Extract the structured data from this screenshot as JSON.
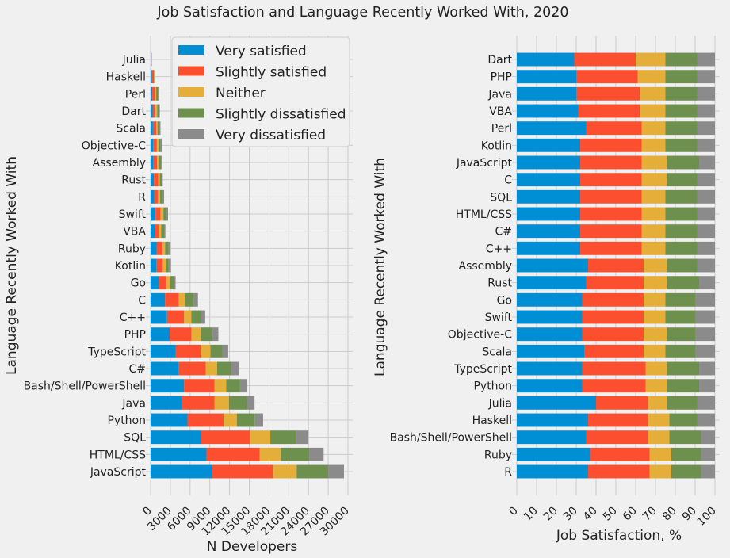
{
  "figure_title": "Job Satisfaction and Language Recently Worked With, 2020",
  "colors": [
    "#008fd5",
    "#fc4f30",
    "#e5ae38",
    "#6d904f",
    "#8b8b8b"
  ],
  "chart_data": [
    {
      "type": "bar",
      "orientation": "horizontal",
      "stacked": true,
      "title": "",
      "xlabel": "N Developers",
      "ylabel": "Language Recently Worked With",
      "xlim": [
        0,
        30000
      ],
      "xticks": [
        "0",
        "3000",
        "6000",
        "9000",
        "12000",
        "15000",
        "18000",
        "21000",
        "24000",
        "27000",
        "30000"
      ],
      "grid": true,
      "legend": "top-center",
      "legend_entries": [
        "Very satisfied",
        "Slightly satisfied",
        "Neither",
        "Slightly dissatisfied",
        "Very dissatisfied"
      ],
      "categories": [
        "JavaScript",
        "HTML/CSS",
        "SQL",
        "Python",
        "Java",
        "Bash/Shell/PowerShell",
        "C#",
        "TypeScript",
        "PHP",
        "C++",
        "C",
        "Go",
        "Kotlin",
        "Ruby",
        "VBA",
        "Swift",
        "R",
        "Rust",
        "Assembly",
        "Objective-C",
        "Scala",
        "Dart",
        "Perl",
        "Haskell",
        "Julia"
      ],
      "series": [
        {
          "name": "Very satisfied",
          "values": [
            9300,
            8500,
            7600,
            5600,
            4800,
            5100,
            4300,
            3800,
            2900,
            2500,
            2200,
            1250,
            850,
            950,
            700,
            750,
            550,
            500,
            450,
            400,
            350,
            300,
            250,
            220,
            70
          ]
        },
        {
          "name": "Slightly satisfied",
          "values": [
            9300,
            8100,
            7500,
            5500,
            4900,
            4600,
            4100,
            3800,
            3300,
            2600,
            2100,
            1200,
            1000,
            850,
            550,
            750,
            550,
            650,
            550,
            550,
            500,
            450,
            400,
            270,
            70
          ]
        },
        {
          "name": "Neither",
          "values": [
            3600,
            3200,
            3100,
            2000,
            2200,
            1800,
            1700,
            1500,
            1500,
            1100,
            1000,
            500,
            450,
            400,
            350,
            450,
            350,
            250,
            250,
            250,
            200,
            250,
            200,
            80,
            20
          ]
        },
        {
          "name": "Slightly dissatisfied",
          "values": [
            4800,
            4300,
            3900,
            2700,
            2700,
            2100,
            2100,
            1800,
            1700,
            1400,
            1300,
            550,
            450,
            550,
            450,
            450,
            350,
            300,
            350,
            300,
            250,
            250,
            250,
            80,
            20
          ]
        },
        {
          "name": "Very dissatisfied",
          "values": [
            2400,
            2200,
            1900,
            1300,
            1200,
            1100,
            1200,
            900,
            900,
            700,
            600,
            300,
            350,
            300,
            200,
            250,
            250,
            150,
            150,
            200,
            200,
            150,
            150,
            70,
            15
          ]
        }
      ]
    },
    {
      "type": "bar",
      "orientation": "horizontal",
      "stacked": true,
      "title": "",
      "xlabel": "Job Satisfaction, %",
      "ylabel": "Language Recently Worked With",
      "xlim": [
        0,
        100
      ],
      "xticks": [
        "0",
        "10",
        "20",
        "30",
        "40",
        "50",
        "60",
        "70",
        "80",
        "90",
        "100"
      ],
      "grid": true,
      "categories": [
        "R",
        "Ruby",
        "Bash/Shell/PowerShell",
        "Haskell",
        "Julia",
        "Python",
        "TypeScript",
        "Scala",
        "Objective-C",
        "Swift",
        "Go",
        "Rust",
        "Assembly",
        "C++",
        "C#",
        "HTML/CSS",
        "SQL",
        "C",
        "JavaScript",
        "Kotlin",
        "Perl",
        "VBA",
        "Java",
        "PHP",
        "Dart"
      ],
      "series": [
        {
          "name": "Very satisfied",
          "values": [
            36,
            37,
            35,
            36,
            40,
            33,
            33,
            34,
            33,
            33,
            33,
            35,
            36,
            32,
            32,
            32,
            32,
            32,
            32,
            32,
            35,
            31,
            30,
            30,
            29
          ]
        },
        {
          "name": "Slightly satisfied",
          "values": [
            31,
            30,
            31,
            30,
            26,
            32,
            32,
            30,
            31,
            31,
            31,
            29,
            28,
            31,
            31,
            31,
            31,
            31,
            31,
            31,
            28,
            31,
            32,
            31,
            31
          ]
        },
        {
          "name": "Neither",
          "values": [
            11,
            11,
            11,
            11,
            10,
            11,
            11,
            11,
            12,
            11,
            11,
            12,
            12,
            12,
            12,
            12,
            12,
            13,
            13,
            12,
            12,
            13,
            13,
            14,
            15
          ]
        },
        {
          "name": "Slightly dissatisfied",
          "values": [
            15,
            15,
            16,
            14,
            15,
            16,
            16,
            15,
            14,
            15,
            15,
            16,
            15,
            16,
            16,
            16,
            16,
            15,
            16,
            16,
            16,
            16,
            16,
            16,
            16
          ]
        },
        {
          "name": "Very dissatisfied",
          "values": [
            7,
            7,
            7,
            9,
            9,
            8,
            8,
            10,
            10,
            10,
            10,
            8,
            9,
            9,
            9,
            9,
            9,
            9,
            8,
            9,
            9,
            9,
            9,
            9,
            9
          ]
        }
      ]
    }
  ]
}
